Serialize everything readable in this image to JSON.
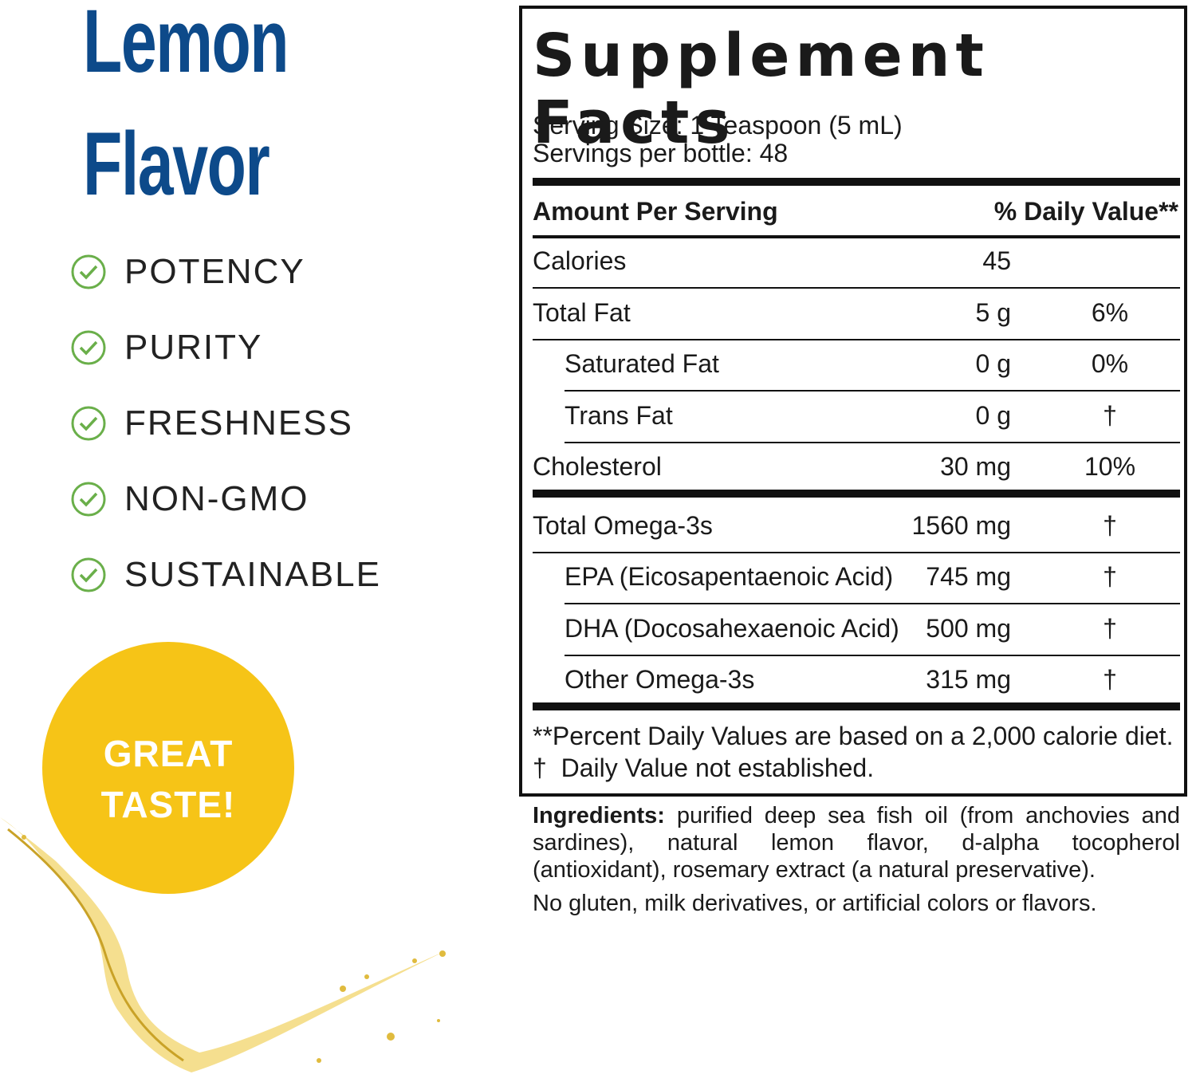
{
  "brand_panel": {
    "title": [
      "Lemon",
      "Flavor"
    ],
    "features": [
      "POTENCY",
      "PURITY",
      "FRESHNESS",
      "NON-GMO",
      "SUSTAINABLE"
    ],
    "badge": [
      "GREAT",
      "TASTE!"
    ]
  },
  "facts": {
    "title": "Supplement Facts",
    "serving_size": "Serving Size: 1 Teaspoon (5 mL)",
    "servings": "Servings per bottle: 48",
    "header": {
      "amount": "Amount Per Serving",
      "dv": "% Daily Value**"
    },
    "groups": [
      [
        {
          "name": "Calories",
          "amount": "45"
        },
        {
          "name": "Total Fat",
          "amount": "5 g",
          "dv": "6%"
        },
        {
          "name": "Saturated Fat",
          "amount": "0 g",
          "dv": "0%",
          "indent": true
        },
        {
          "name": "Trans Fat",
          "amount": "0 g",
          "dv": "†",
          "indent": true
        },
        {
          "name": "Cholesterol",
          "amount": "30 mg",
          "dv": "10%"
        }
      ],
      [
        {
          "name": "Total Omega-3s",
          "amount": "1560 mg",
          "dv": "†"
        },
        {
          "name": "EPA (Eicosapentaenoic Acid)",
          "amount": "745 mg",
          "dv": "†",
          "indent": true
        },
        {
          "name": "DHA (Docosahexaenoic Acid)",
          "amount": "500 mg",
          "dv": "†",
          "indent": true
        },
        {
          "name": "Other Omega-3s",
          "amount": "315 mg",
          "dv": "†",
          "indent": true
        }
      ]
    ],
    "footnotes": [
      "**Percent Daily Values are based on a 2,000 calorie diet.",
      "†  Daily Value not established."
    ]
  },
  "ingredients": {
    "label": "Ingredients:",
    "text": "purified deep sea fish oil (from anchovies and sardines), natural lemon flavor, d-alpha tocopherol (antioxidant), rosemary extract (a natural preservative).",
    "note": "No gluten, milk derivatives, or artificial colors or flavors."
  }
}
